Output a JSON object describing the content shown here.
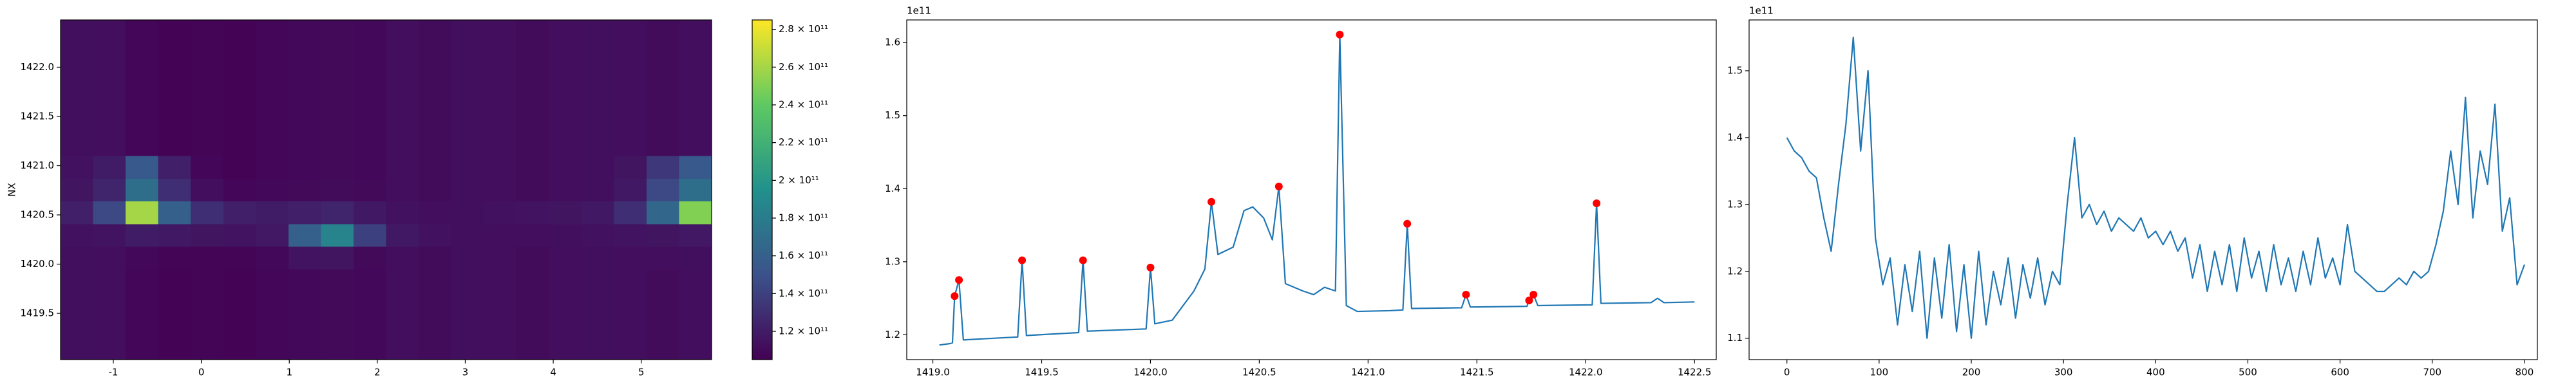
{
  "chart_data": [
    {
      "type": "heatmap",
      "ylabel": "NX",
      "colormap": "viridis",
      "xlim": [
        -1.6,
        5.8
      ],
      "ylim": [
        1419.03,
        1422.48
      ],
      "xticks": [
        -1,
        0,
        1,
        2,
        3,
        4,
        5
      ],
      "yticks": [
        1419.5,
        {
          "value": 1420,
          "label": "1420.0"
        },
        1420.5,
        {
          "value": 1421,
          "label": "1421.0"
        },
        1421.5,
        {
          "value": 1422,
          "label": "1422.0"
        }
      ],
      "x_edges": [
        -1.6,
        -1.23,
        -0.86,
        -0.49,
        -0.12,
        0.25,
        0.62,
        0.99,
        1.36,
        1.73,
        2.1,
        2.47,
        2.84,
        3.21,
        3.58,
        3.95,
        4.32,
        4.69,
        5.06,
        5.43,
        5.8
      ],
      "y_edges": [
        1419.03,
        1419.26,
        1419.49,
        1419.72,
        1419.95,
        1420.18,
        1420.41,
        1420.64,
        1420.87,
        1421.1,
        1421.33,
        1421.56,
        1421.79,
        1422.02,
        1422.25,
        1422.48
      ],
      "z": [
        [
          113000000000.0,
          112000000000.0,
          108000000000.0,
          106000000000.0,
          107000000000.0,
          106000000000.0,
          108000000000.0,
          109000000000.0,
          110000000000.0,
          109000000000.0,
          112000000000.0,
          111000000000.0,
          113000000000.0,
          112000000000.0,
          111000000000.0,
          112000000000.0,
          113000000000.0,
          112000000000.0,
          111000000000.0,
          112000000000.0
        ],
        [
          113000000000.0,
          112000000000.0,
          108000000000.0,
          106000000000.0,
          107000000000.0,
          106000000000.0,
          108000000000.0,
          109000000000.0,
          110000000000.0,
          109000000000.0,
          112000000000.0,
          111000000000.0,
          113000000000.0,
          112000000000.0,
          111000000000.0,
          112000000000.0,
          113000000000.0,
          112000000000.0,
          111000000000.0,
          112000000000.0
        ],
        [
          113000000000.0,
          112000000000.0,
          108000000000.0,
          106000000000.0,
          107000000000.0,
          106000000000.0,
          108000000000.0,
          109000000000.0,
          110000000000.0,
          109000000000.0,
          112000000000.0,
          111000000000.0,
          113000000000.0,
          112000000000.0,
          111000000000.0,
          112000000000.0,
          113000000000.0,
          112000000000.0,
          111000000000.0,
          112000000000.0
        ],
        [
          113000000000.0,
          112000000000.0,
          108000000000.0,
          106000000000.0,
          107000000000.0,
          106000000000.0,
          108000000000.0,
          109000000000.0,
          110000000000.0,
          109000000000.0,
          112000000000.0,
          111000000000.0,
          113000000000.0,
          112000000000.0,
          111000000000.0,
          112000000000.0,
          113000000000.0,
          112000000000.0,
          111000000000.0,
          112000000000.0
        ],
        [
          113000000000.0,
          112000000000.0,
          109000000000.0,
          107000000000.0,
          107000000000.0,
          107000000000.0,
          109000000000.0,
          115000000000.0,
          116000000000.0,
          110000000000.0,
          112000000000.0,
          111000000000.0,
          113000000000.0,
          112000000000.0,
          111000000000.0,
          112000000000.0,
          113000000000.0,
          112000000000.0,
          112000000000.0,
          113000000000.0
        ],
        [
          114000000000.0,
          115000000000.0,
          120000000000.0,
          118000000000.0,
          116000000000.0,
          115000000000.0,
          117000000000.0,
          160000000000.0,
          185000000000.0,
          140000000000.0,
          118000000000.0,
          114000000000.0,
          113000000000.0,
          112000000000.0,
          112000000000.0,
          113000000000.0,
          114000000000.0,
          115000000000.0,
          116000000000.0,
          117000000000.0
        ],
        [
          122000000000.0,
          145000000000.0,
          260000000000.0,
          160000000000.0,
          130000000000.0,
          122000000000.0,
          120000000000.0,
          122000000000.0,
          125000000000.0,
          118000000000.0,
          114000000000.0,
          112000000000.0,
          113000000000.0,
          114000000000.0,
          115000000000.0,
          116000000000.0,
          118000000000.0,
          130000000000.0,
          165000000000.0,
          250000000000.0
        ],
        [
          116000000000.0,
          125000000000.0,
          170000000000.0,
          130000000000.0,
          112000000000.0,
          108000000000.0,
          109000000000.0,
          110000000000.0,
          111000000000.0,
          110000000000.0,
          112000000000.0,
          111000000000.0,
          113000000000.0,
          112000000000.0,
          111000000000.0,
          112000000000.0,
          113000000000.0,
          118000000000.0,
          145000000000.0,
          170000000000.0
        ],
        [
          114000000000.0,
          120000000000.0,
          155000000000.0,
          122000000000.0,
          108000000000.0,
          106000000000.0,
          108000000000.0,
          109000000000.0,
          110000000000.0,
          109000000000.0,
          112000000000.0,
          111000000000.0,
          113000000000.0,
          112000000000.0,
          111000000000.0,
          112000000000.0,
          113000000000.0,
          116000000000.0,
          135000000000.0,
          155000000000.0
        ],
        [
          113000000000.0,
          112000000000.0,
          108000000000.0,
          106000000000.0,
          107000000000.0,
          106000000000.0,
          108000000000.0,
          109000000000.0,
          110000000000.0,
          109000000000.0,
          112000000000.0,
          111000000000.0,
          113000000000.0,
          112000000000.0,
          111000000000.0,
          112000000000.0,
          113000000000.0,
          112000000000.0,
          111000000000.0,
          112000000000.0
        ],
        [
          113000000000.0,
          112000000000.0,
          108000000000.0,
          106000000000.0,
          107000000000.0,
          106000000000.0,
          108000000000.0,
          109000000000.0,
          110000000000.0,
          109000000000.0,
          112000000000.0,
          111000000000.0,
          113000000000.0,
          112000000000.0,
          111000000000.0,
          112000000000.0,
          113000000000.0,
          112000000000.0,
          111000000000.0,
          112000000000.0
        ],
        [
          113000000000.0,
          112000000000.0,
          108000000000.0,
          106000000000.0,
          107000000000.0,
          106000000000.0,
          108000000000.0,
          109000000000.0,
          110000000000.0,
          109000000000.0,
          112000000000.0,
          111000000000.0,
          113000000000.0,
          112000000000.0,
          111000000000.0,
          112000000000.0,
          113000000000.0,
          112000000000.0,
          111000000000.0,
          112000000000.0
        ],
        [
          113000000000.0,
          112000000000.0,
          108000000000.0,
          106000000000.0,
          107000000000.0,
          106000000000.0,
          108000000000.0,
          109000000000.0,
          110000000000.0,
          109000000000.0,
          112000000000.0,
          111000000000.0,
          113000000000.0,
          112000000000.0,
          111000000000.0,
          112000000000.0,
          113000000000.0,
          112000000000.0,
          111000000000.0,
          112000000000.0
        ],
        [
          113000000000.0,
          112000000000.0,
          108000000000.0,
          106000000000.0,
          107000000000.0,
          106000000000.0,
          108000000000.0,
          109000000000.0,
          110000000000.0,
          109000000000.0,
          112000000000.0,
          111000000000.0,
          113000000000.0,
          112000000000.0,
          111000000000.0,
          112000000000.0,
          113000000000.0,
          112000000000.0,
          111000000000.0,
          112000000000.0
        ],
        [
          113000000000.0,
          112000000000.0,
          108000000000.0,
          106000000000.0,
          107000000000.0,
          106000000000.0,
          108000000000.0,
          109000000000.0,
          110000000000.0,
          109000000000.0,
          112000000000.0,
          111000000000.0,
          113000000000.0,
          112000000000.0,
          111000000000.0,
          112000000000.0,
          113000000000.0,
          112000000000.0,
          111000000000.0,
          112000000000.0
        ]
      ],
      "clim": [
        105000000000.0,
        285000000000.0
      ],
      "cticks": [
        {
          "value": 120000000000.0,
          "label": "1.2 × 10¹¹"
        },
        {
          "value": 140000000000.0,
          "label": "1.4 × 10¹¹"
        },
        {
          "value": 160000000000.0,
          "label": "1.6 × 10¹¹"
        },
        {
          "value": 180000000000.0,
          "label": "1.8 × 10¹¹"
        },
        {
          "value": 200000000000.0,
          "label": "2 × 10¹¹"
        },
        {
          "value": 220000000000.0,
          "label": "2.2 × 10¹¹"
        },
        {
          "value": 240000000000.0,
          "label": "2.4 × 10¹¹"
        },
        {
          "value": 260000000000.0,
          "label": "2.6 × 10¹¹"
        },
        {
          "value": 280000000000.0,
          "label": "2.8 × 10¹¹"
        }
      ]
    },
    {
      "type": "line",
      "y_offset_label": "1e11",
      "xlim": [
        1418.88,
        1422.6
      ],
      "ylim": [
        1.166,
        1.631
      ],
      "xticks": [
        {
          "value": 1419,
          "label": "1419.0"
        },
        1419.5,
        {
          "value": 1420,
          "label": "1420.0"
        },
        1420.5,
        {
          "value": 1421,
          "label": "1421.0"
        },
        1421.5,
        {
          "value": 1422,
          "label": "1422.0"
        },
        1422.5
      ],
      "yticks": [
        1.2,
        1.3,
        1.4,
        1.5,
        1.6
      ],
      "series": [
        {
          "color": "#1f77b4",
          "mode": "line",
          "x": [
            1419.03,
            1419.08,
            1419.09,
            1419.1,
            1419.12,
            1419.14,
            1419.39,
            1419.41,
            1419.43,
            1419.67,
            1419.69,
            1419.71,
            1419.98,
            1420.0,
            1420.02,
            1420.1,
            1420.2,
            1420.25,
            1420.28,
            1420.31,
            1420.38,
            1420.43,
            1420.47,
            1420.52,
            1420.56,
            1420.59,
            1420.62,
            1420.7,
            1420.75,
            1420.8,
            1420.85,
            1420.87,
            1420.9,
            1420.95,
            1421.1,
            1421.16,
            1421.18,
            1421.2,
            1421.43,
            1421.45,
            1421.47,
            1421.73,
            1421.74,
            1421.76,
            1421.78,
            1422.03,
            1422.05,
            1422.07,
            1422.3,
            1422.33,
            1422.36,
            1422.5
          ],
          "values": [
            1.186,
            1.188,
            1.189,
            1.253,
            1.275,
            1.193,
            1.197,
            1.302,
            1.199,
            1.203,
            1.302,
            1.205,
            1.208,
            1.292,
            1.215,
            1.22,
            1.26,
            1.29,
            1.382,
            1.31,
            1.32,
            1.37,
            1.375,
            1.36,
            1.33,
            1.403,
            1.27,
            1.26,
            1.255,
            1.265,
            1.26,
            1.611,
            1.24,
            1.232,
            1.233,
            1.234,
            1.352,
            1.236,
            1.237,
            1.255,
            1.238,
            1.239,
            1.247,
            1.255,
            1.24,
            1.241,
            1.38,
            1.243,
            1.244,
            1.25,
            1.244,
            1.245
          ]
        },
        {
          "color": "#ff0000",
          "mode": "markers",
          "x": [
            1419.1,
            1419.12,
            1419.41,
            1419.69,
            1420.0,
            1420.28,
            1420.59,
            1420.87,
            1421.18,
            1421.45,
            1421.74,
            1421.76,
            1422.05
          ],
          "values": [
            1.253,
            1.275,
            1.302,
            1.302,
            1.292,
            1.382,
            1.403,
            1.611,
            1.352,
            1.255,
            1.247,
            1.255,
            1.38
          ]
        }
      ]
    },
    {
      "type": "line",
      "y_offset_label": "1e11",
      "xlim": [
        -41,
        814
      ],
      "ylim": [
        1.068,
        1.576
      ],
      "xticks": [
        0,
        100,
        200,
        300,
        400,
        500,
        600,
        700,
        800
      ],
      "yticks": [
        1.1,
        1.2,
        1.3,
        1.4,
        1.5
      ],
      "series": [
        {
          "color": "#1f77b4",
          "mode": "line",
          "x": [
            0,
            8,
            16,
            24,
            32,
            40,
            48,
            56,
            64,
            72,
            80,
            88,
            96,
            104,
            112,
            120,
            128,
            136,
            144,
            152,
            160,
            168,
            176,
            184,
            192,
            200,
            208,
            216,
            224,
            232,
            240,
            248,
            256,
            264,
            272,
            280,
            288,
            296,
            304,
            312,
            320,
            328,
            336,
            344,
            352,
            360,
            368,
            376,
            384,
            392,
            400,
            408,
            416,
            424,
            432,
            440,
            448,
            456,
            464,
            472,
            480,
            488,
            496,
            504,
            512,
            520,
            528,
            536,
            544,
            552,
            560,
            568,
            576,
            584,
            592,
            600,
            608,
            616,
            624,
            632,
            640,
            648,
            656,
            664,
            672,
            680,
            688,
            696,
            704,
            712,
            720,
            728,
            736,
            744,
            752,
            760,
            768,
            776,
            784,
            792,
            800
          ],
          "values": [
            1.4,
            1.38,
            1.37,
            1.35,
            1.34,
            1.28,
            1.23,
            1.33,
            1.42,
            1.55,
            1.38,
            1.5,
            1.25,
            1.18,
            1.22,
            1.12,
            1.21,
            1.14,
            1.23,
            1.1,
            1.22,
            1.13,
            1.24,
            1.11,
            1.21,
            1.1,
            1.23,
            1.12,
            1.2,
            1.15,
            1.22,
            1.13,
            1.21,
            1.16,
            1.22,
            1.15,
            1.2,
            1.18,
            1.3,
            1.4,
            1.28,
            1.3,
            1.27,
            1.29,
            1.26,
            1.28,
            1.27,
            1.26,
            1.28,
            1.25,
            1.26,
            1.24,
            1.26,
            1.23,
            1.25,
            1.19,
            1.24,
            1.17,
            1.23,
            1.18,
            1.24,
            1.17,
            1.25,
            1.19,
            1.23,
            1.17,
            1.24,
            1.18,
            1.22,
            1.17,
            1.23,
            1.18,
            1.25,
            1.19,
            1.22,
            1.18,
            1.27,
            1.2,
            1.19,
            1.18,
            1.17,
            1.17,
            1.18,
            1.19,
            1.18,
            1.2,
            1.19,
            1.2,
            1.24,
            1.29,
            1.38,
            1.3,
            1.46,
            1.28,
            1.38,
            1.33,
            1.45,
            1.26,
            1.31,
            1.18,
            1.21
          ]
        }
      ]
    }
  ]
}
